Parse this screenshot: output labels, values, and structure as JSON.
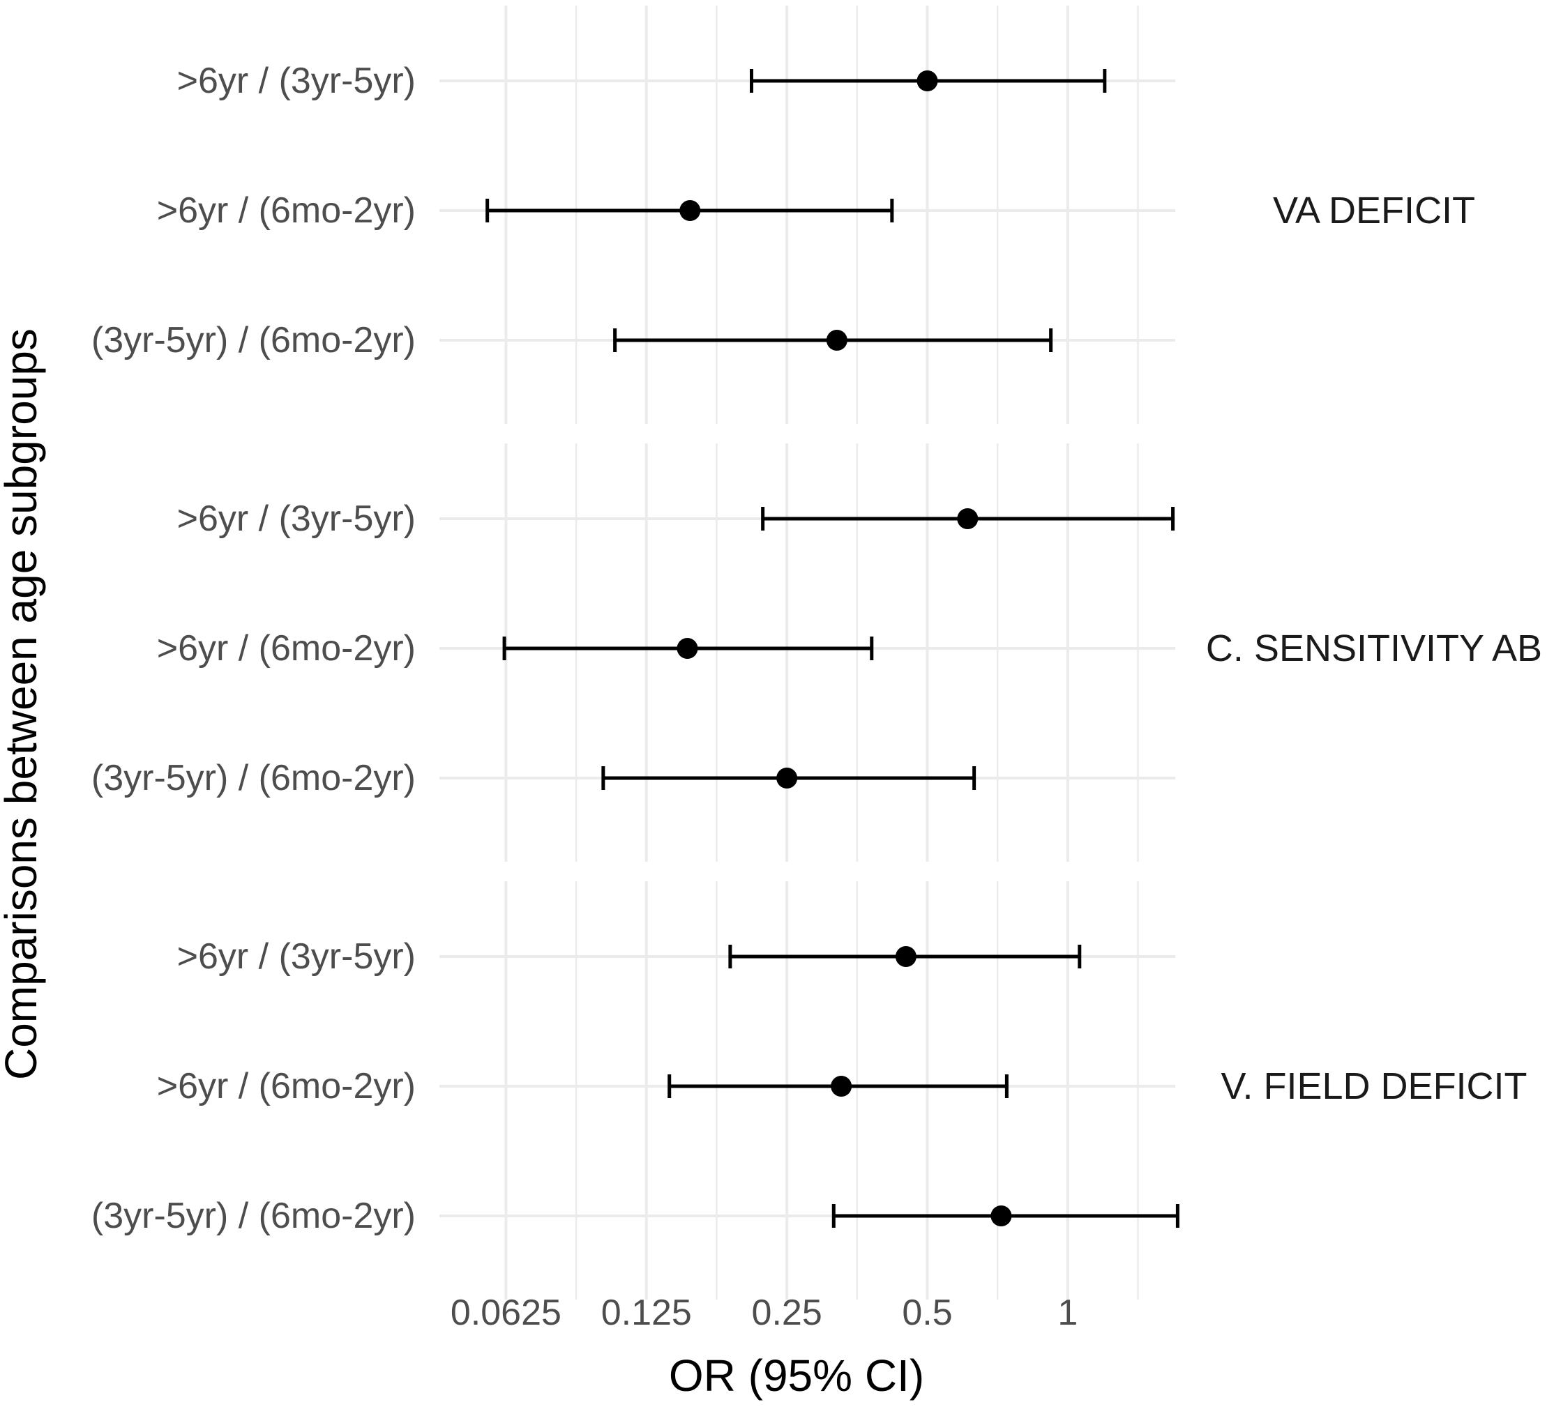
{
  "chart_data": {
    "type": "forest",
    "xlabel": "OR (95% CI)",
    "ylabel": "Comparisons between age subgroups",
    "x_scale": "log2",
    "xlim": [
      0.045,
      1.7
    ],
    "x_ticks": [
      0.0625,
      0.125,
      0.25,
      0.5,
      1
    ],
    "x_tick_labels": [
      "0.0625",
      "0.125",
      "0.25",
      "0.5",
      "1"
    ],
    "grid": true,
    "colors": {
      "grid": "#ebebeb",
      "marks": "#000000",
      "text": "#4d4d4d"
    },
    "panels": [
      {
        "label": "VA DEFICIT",
        "rows": [
          {
            "label": ">6yr / (3yr-5yr)",
            "or": 0.5,
            "lower": 0.21,
            "upper": 1.2
          },
          {
            "label": ">6yr / (6mo-2yr)",
            "or": 0.155,
            "lower": 0.057,
            "upper": 0.42
          },
          {
            "label": "(3yr-5yr) / (6mo-2yr)",
            "or": 0.32,
            "lower": 0.107,
            "upper": 0.92
          }
        ]
      },
      {
        "label": "C. SENSITIVITY AB",
        "rows": [
          {
            "label": ">6yr / (3yr-5yr)",
            "or": 0.61,
            "lower": 0.222,
            "upper": 1.68
          },
          {
            "label": ">6yr / (6mo-2yr)",
            "or": 0.153,
            "lower": 0.062,
            "upper": 0.38
          },
          {
            "label": "(3yr-5yr) / (6mo-2yr)",
            "or": 0.25,
            "lower": 0.101,
            "upper": 0.63
          }
        ]
      },
      {
        "label": "V. FIELD DEFICIT",
        "rows": [
          {
            "label": ">6yr / (3yr-5yr)",
            "or": 0.45,
            "lower": 0.189,
            "upper": 1.06
          },
          {
            "label": ">6yr / (6mo-2yr)",
            "or": 0.327,
            "lower": 0.14,
            "upper": 0.74
          },
          {
            "label": "(3yr-5yr) / (6mo-2yr)",
            "or": 0.72,
            "lower": 0.315,
            "upper": 1.72
          }
        ]
      }
    ]
  }
}
